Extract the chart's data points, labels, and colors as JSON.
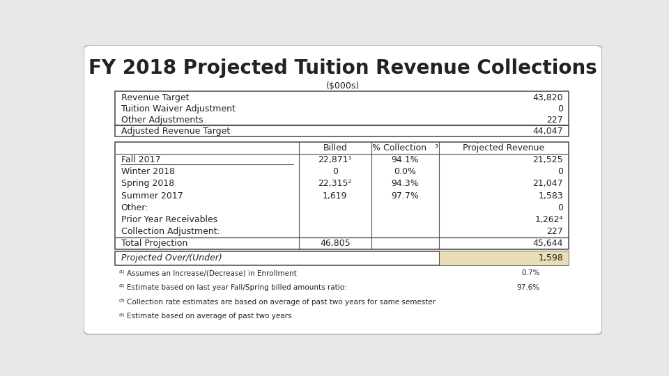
{
  "title": "FY 2018 Projected Tuition Revenue Collections",
  "subtitle": "($000s)",
  "top_table": {
    "rows": [
      [
        "Revenue Target",
        "43,820"
      ],
      [
        "Tuition Waiver Adjustment",
        "0"
      ],
      [
        "Other Adjustments",
        "227"
      ],
      [
        "Adjusted Revenue Target",
        "44,047"
      ]
    ]
  },
  "main_table": {
    "headers": [
      "",
      "Billed",
      "% Collection   ³",
      "Projected Revenue"
    ],
    "rows": [
      [
        "Fall 2017",
        "22,871¹",
        "94.1%",
        "21,525"
      ],
      [
        "Winter 2018",
        "0",
        "0.0%",
        "0"
      ],
      [
        "Spring 2018",
        "22,315²",
        "94.3%",
        "21,047"
      ],
      [
        "Summer 2017",
        "1,619",
        "97.7%",
        "1,583"
      ],
      [
        "Other:",
        "",
        "",
        "0"
      ],
      [
        "Prior Year Receivables",
        "",
        "",
        "1,262⁴"
      ],
      [
        "Collection Adjustment:",
        "",
        "",
        "227"
      ],
      [
        "Total Projection",
        "46,805",
        "",
        "45,644"
      ]
    ]
  },
  "projected_row": {
    "label": "Projected Over/(Under)",
    "value": "1,598",
    "bg_color": "#e8ddb5"
  },
  "footnotes": [
    [
      "⁽¹⁾",
      "Assumes an Increase/(Decrease) in Enrollment",
      "0.7%"
    ],
    [
      "⁽²⁾",
      "Estimate based on last year Fall/Spring billed amounts ratio:",
      "97.6%"
    ],
    [
      "⁽³⁾",
      "Collection rate estimates are based on average of past two years for same semester",
      ""
    ],
    [
      "⁽⁴⁾",
      "Estimate based on average of past two years",
      ""
    ]
  ],
  "title_fontsize": 20,
  "subtitle_fontsize": 9,
  "table_fontsize": 9,
  "fn_fontsize": 7.5,
  "outer_bg": "#e8e8e8",
  "inner_bg": "#ffffff",
  "border_color": "#555555",
  "highlight_color": "#e8ddb5"
}
